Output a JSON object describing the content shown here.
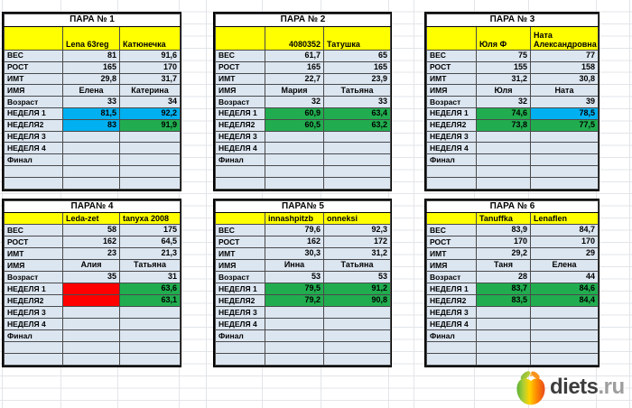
{
  "logo": {
    "text_main": "diets",
    "text_suffix": ".ru",
    "icon": "apple-logo-icon"
  },
  "colors": {
    "header_yellow": "#ffff00",
    "cell_light_blue": "#dce6f1",
    "week_green": "#21ad4f",
    "week_blue": "#00b0f0",
    "week_red": "#ff0000",
    "gridline": "#e2e5e9"
  },
  "tables": [
    {
      "title": "ПАРА № 1",
      "participants": [
        "Lena 63reg",
        "Катюнечка"
      ],
      "rows": [
        {
          "label": "ВЕС",
          "values": [
            "81",
            "91,6"
          ]
        },
        {
          "label": "РОСТ",
          "values": [
            "165",
            "170"
          ]
        },
        {
          "label": "ИМТ",
          "values": [
            "29,8",
            "31,7"
          ]
        },
        {
          "label": "ИМЯ",
          "values": [
            "Елена",
            "Катерина"
          ]
        },
        {
          "label": "Возраст",
          "values": [
            "33",
            "34"
          ]
        },
        {
          "label": "НЕДЕЛЯ 1",
          "values": [
            "81,5",
            "92,2"
          ],
          "fills": [
            "blue",
            "blue"
          ]
        },
        {
          "label": "НЕДЕЛЯ2",
          "values": [
            "83",
            "91,9"
          ],
          "fills": [
            "blue",
            "green"
          ]
        },
        {
          "label": "НЕДЕЛЯ 3",
          "values": [
            "",
            ""
          ]
        },
        {
          "label": "НЕДЕЛЯ 4",
          "values": [
            "",
            ""
          ]
        },
        {
          "label": "Финал",
          "values": [
            "",
            ""
          ]
        }
      ],
      "empty_rows": 2
    },
    {
      "title": "ПАРА № 2",
      "participants": [
        "4080352",
        "Татушка"
      ],
      "rows": [
        {
          "label": "ВЕС",
          "values": [
            "61,7",
            "65"
          ]
        },
        {
          "label": "РОСТ",
          "values": [
            "165",
            "165"
          ]
        },
        {
          "label": "ИМТ",
          "values": [
            "22,7",
            "23,9"
          ]
        },
        {
          "label": "ИМЯ",
          "values": [
            "Мария",
            "Татьяна"
          ]
        },
        {
          "label": "Возраст",
          "values": [
            "32",
            "33"
          ]
        },
        {
          "label": "НЕДЕЛЯ 1",
          "values": [
            "60,9",
            "63,4"
          ],
          "fills": [
            "green",
            "green"
          ]
        },
        {
          "label": "НЕДЕЛЯ2",
          "values": [
            "60,5",
            "63,2"
          ],
          "fills": [
            "green",
            "green"
          ]
        },
        {
          "label": "НЕДЕЛЯ 3",
          "values": [
            "",
            ""
          ]
        },
        {
          "label": "НЕДЕЛЯ 4",
          "values": [
            "",
            ""
          ]
        },
        {
          "label": "Финал",
          "values": [
            "",
            ""
          ]
        }
      ],
      "empty_rows": 2
    },
    {
      "title": "ПАРА № 3",
      "participants": [
        "Юля Ф",
        "Ната Александровна"
      ],
      "rows": [
        {
          "label": "ВЕС",
          "values": [
            "75",
            "77"
          ]
        },
        {
          "label": "РОСТ",
          "values": [
            "155",
            "158"
          ]
        },
        {
          "label": "ИМТ",
          "values": [
            "31,2",
            "30,8"
          ]
        },
        {
          "label": "ИМЯ",
          "values": [
            "Юля",
            "Ната"
          ]
        },
        {
          "label": "Возраст",
          "values": [
            "32",
            "39"
          ]
        },
        {
          "label": "НЕДЕЛЯ 1",
          "values": [
            "74,6",
            "78,5"
          ],
          "fills": [
            "green",
            "blue"
          ]
        },
        {
          "label": "НЕДЕЛЯ2",
          "values": [
            "73,8",
            "77,5"
          ],
          "fills": [
            "green",
            "green"
          ]
        },
        {
          "label": "НЕДЕЛЯ 3",
          "values": [
            "",
            ""
          ]
        },
        {
          "label": "НЕДЕЛЯ 4",
          "values": [
            "",
            ""
          ]
        },
        {
          "label": "Финал",
          "values": [
            "",
            ""
          ]
        }
      ],
      "empty_rows": 2
    },
    {
      "title": "ПАРА№ 4",
      "participants": [
        "Leda-zet",
        "tanyxa 2008"
      ],
      "rows": [
        {
          "label": "ВЕС",
          "values": [
            "58",
            "175"
          ]
        },
        {
          "label": "РОСТ",
          "values": [
            "162",
            "64,5"
          ]
        },
        {
          "label": "ИМТ",
          "values": [
            "23",
            "21,3"
          ]
        },
        {
          "label": "ИМЯ",
          "values": [
            "Алия",
            "Татьяна"
          ]
        },
        {
          "label": "Возраст",
          "values": [
            "35",
            "31"
          ]
        },
        {
          "label": "НЕДЕЛЯ 1",
          "values": [
            "",
            "63,6"
          ],
          "fills": [
            "red",
            "green"
          ]
        },
        {
          "label": "НЕДЕЛЯ2",
          "values": [
            "",
            "63,1"
          ],
          "fills": [
            "red",
            "green"
          ]
        },
        {
          "label": "НЕДЕЛЯ 3",
          "values": [
            "",
            ""
          ]
        },
        {
          "label": "НЕДЕЛЯ 4",
          "values": [
            "",
            ""
          ]
        },
        {
          "label": "Финал",
          "values": [
            "",
            ""
          ]
        }
      ],
      "empty_rows": 2
    },
    {
      "title": "ПАРА№ 5",
      "participants": [
        "innashpitzb",
        "onneksi"
      ],
      "rows": [
        {
          "label": "ВЕС",
          "values": [
            "79,6",
            "92,3"
          ]
        },
        {
          "label": "РОСТ",
          "values": [
            "162",
            "172"
          ]
        },
        {
          "label": "ИМТ",
          "values": [
            "30,3",
            "31,2"
          ]
        },
        {
          "label": "ИМЯ",
          "values": [
            "Инна",
            "Татьяна"
          ]
        },
        {
          "label": "Возраст",
          "values": [
            "53",
            "53"
          ]
        },
        {
          "label": "НЕДЕЛЯ 1",
          "values": [
            "79,5",
            "91,2"
          ],
          "fills": [
            "green",
            "green"
          ]
        },
        {
          "label": "НЕДЕЛЯ2",
          "values": [
            "79,2",
            "90,8"
          ],
          "fills": [
            "green",
            "green"
          ]
        },
        {
          "label": "НЕДЕЛЯ 3",
          "values": [
            "",
            ""
          ]
        },
        {
          "label": "НЕДЕЛЯ 4",
          "values": [
            "",
            ""
          ]
        },
        {
          "label": "Финал",
          "values": [
            "",
            ""
          ]
        }
      ],
      "empty_rows": 2
    },
    {
      "title": "ПАРА № 6",
      "participants": [
        "Tanuffka",
        "Lenaflen"
      ],
      "rows": [
        {
          "label": "ВЕС",
          "values": [
            "83,9",
            "84,7"
          ]
        },
        {
          "label": "РОСТ",
          "values": [
            "170",
            "170"
          ]
        },
        {
          "label": "ИМТ",
          "values": [
            "29,2",
            "29"
          ]
        },
        {
          "label": "ИМЯ",
          "values": [
            "Таня",
            "Елена"
          ]
        },
        {
          "label": "Возраст",
          "values": [
            "28",
            "44"
          ]
        },
        {
          "label": "НЕДЕЛЯ 1",
          "values": [
            "83,7",
            "84,6"
          ],
          "fills": [
            "green",
            "green"
          ]
        },
        {
          "label": "НЕДЕЛЯ2",
          "values": [
            "83,5",
            "84,4"
          ],
          "fills": [
            "green",
            "green"
          ]
        },
        {
          "label": "НЕДЕЛЯ 3",
          "values": [
            "",
            ""
          ]
        },
        {
          "label": "НЕДЕЛЯ 4",
          "values": [
            "",
            ""
          ]
        },
        {
          "label": "Финал",
          "values": [
            "",
            ""
          ]
        }
      ],
      "empty_rows": 2
    }
  ]
}
